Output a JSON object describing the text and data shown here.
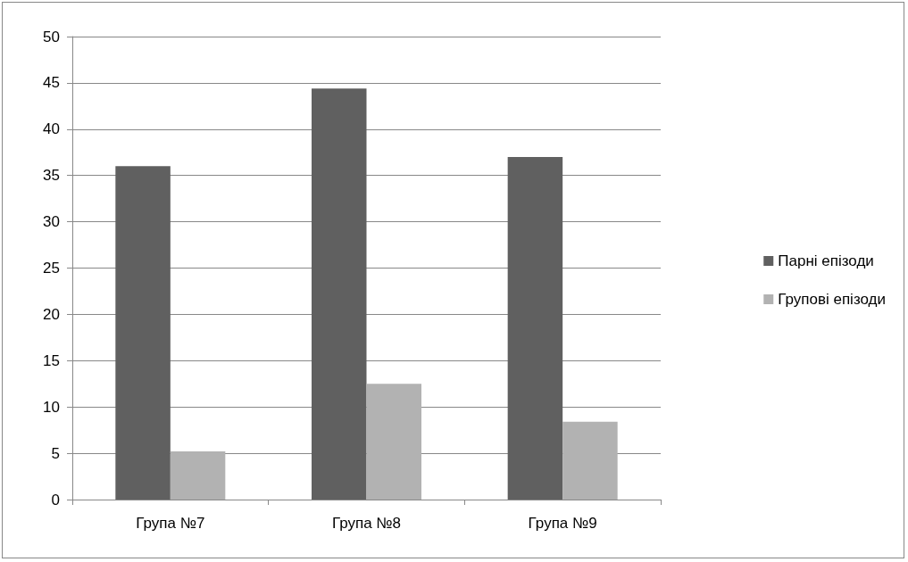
{
  "chart_data": {
    "type": "bar",
    "categories": [
      "Група №7",
      "Група №8",
      "Група №9"
    ],
    "series": [
      {
        "name": "Парні епізоди",
        "color": "#606060",
        "values": [
          36,
          44.4,
          37
        ]
      },
      {
        "name": "Групові епізоди",
        "color": "#b2b2b2",
        "values": [
          5.2,
          12.5,
          8.4
        ]
      }
    ],
    "ylim": [
      0,
      50
    ],
    "yticks": [
      0,
      5,
      10,
      15,
      20,
      25,
      30,
      35,
      40,
      45,
      50
    ],
    "grid": "y",
    "legend": "right"
  }
}
